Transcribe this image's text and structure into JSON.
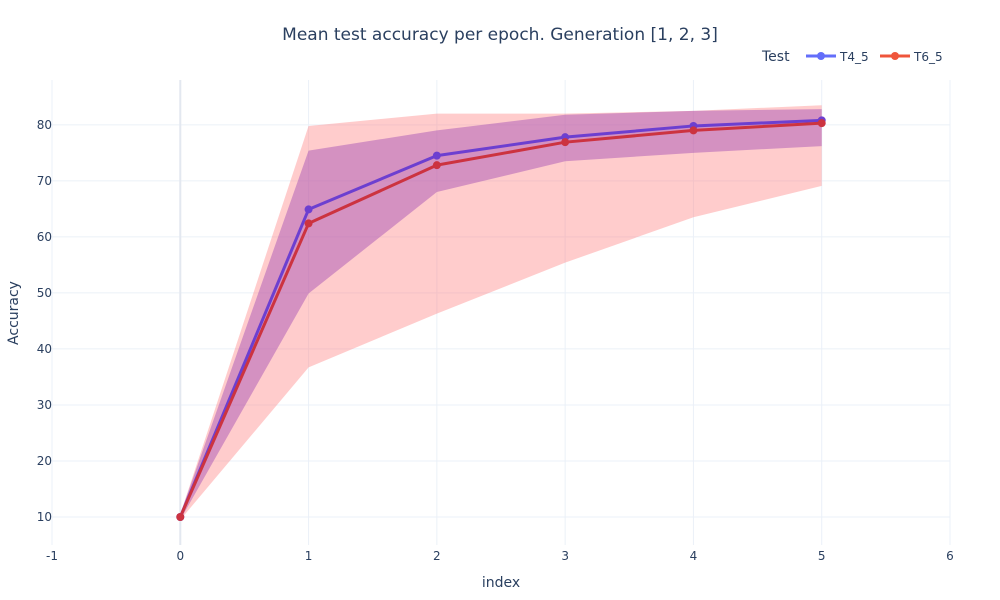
{
  "chart_data": {
    "type": "line",
    "title": "Mean test accuracy per epoch. Generation [1, 2, 3]",
    "xlabel": "index",
    "ylabel": "Accuracy",
    "xlim": [
      -1,
      6
    ],
    "ylim": [
      5,
      88
    ],
    "x_ticks": [
      -1,
      0,
      1,
      2,
      3,
      4,
      5,
      6
    ],
    "y_ticks": [
      10,
      20,
      30,
      40,
      50,
      60,
      70,
      80
    ],
    "grid": true,
    "legend": {
      "title": "Test",
      "placement": "top-right",
      "orientation": "horizontal",
      "entries": [
        "T4_5",
        "T6_5"
      ]
    },
    "x": [
      0,
      1,
      2,
      3,
      4,
      5
    ],
    "series": [
      {
        "name": "T4_5",
        "line_color": "#6c3fd0",
        "legend_color": "#636efa",
        "band_color": "#a04ab4",
        "band_opacity": 0.45,
        "values": [
          10,
          64.9,
          74.5,
          77.8,
          79.8,
          80.8
        ],
        "upper": [
          10.5,
          75.4,
          79.0,
          81.8,
          82.5,
          82.8
        ],
        "lower": [
          9.5,
          49.9,
          68.0,
          73.5,
          75.0,
          76.2
        ]
      },
      {
        "name": "T6_5",
        "line_color": "#cc3340",
        "legend_color": "#ef553b",
        "band_color": "#ff8080",
        "band_opacity": 0.4,
        "values": [
          10,
          62.4,
          72.8,
          76.9,
          79.0,
          80.3
        ],
        "upper": [
          10.5,
          79.8,
          82.0,
          82.0,
          82.5,
          83.5
        ],
        "lower": [
          9.5,
          36.7,
          46.3,
          55.4,
          63.5,
          69.1
        ]
      }
    ]
  }
}
